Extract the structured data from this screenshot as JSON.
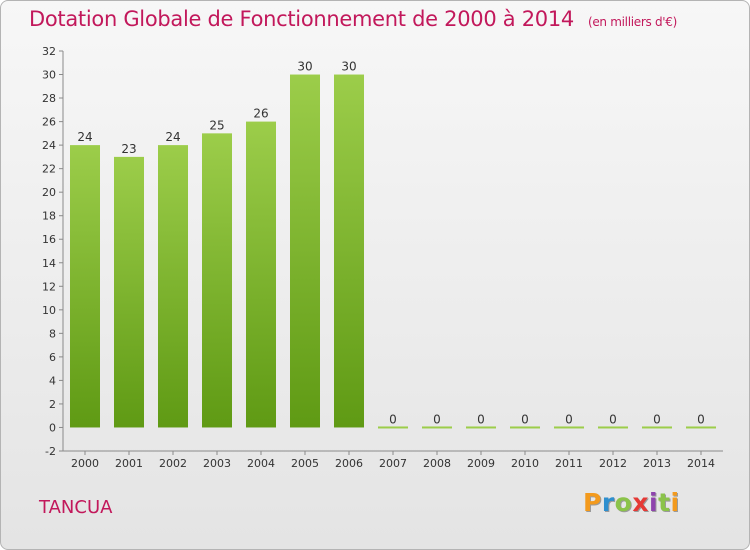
{
  "title": "Dotation Globale de Fonctionnement de 2000 à 2014",
  "unit": "(en milliers d'€)",
  "town": "TANCUA",
  "logo": {
    "letters": [
      "P",
      "r",
      "o",
      "x",
      "i",
      "t",
      "i"
    ],
    "colors": [
      "#f39a1d",
      "#2e8fcf",
      "#8bc34a",
      "#e53935",
      "#8e44ad",
      "#8bc34a",
      "#f39a1d"
    ]
  },
  "colors": {
    "bar_top": "#9ccd4a",
    "bar_bottom": "#5f9a14",
    "title": "#c2185b"
  },
  "chart_data": {
    "type": "bar",
    "title": "Dotation Globale de Fonctionnement de 2000 à 2014",
    "subtitle": "(en milliers d'€)",
    "xlabel": "",
    "ylabel": "",
    "categories": [
      "2000",
      "2001",
      "2002",
      "2003",
      "2004",
      "2005",
      "2006",
      "2007",
      "2008",
      "2009",
      "2010",
      "2011",
      "2012",
      "2013",
      "2014"
    ],
    "values": [
      24,
      23,
      24,
      25,
      26,
      30,
      30,
      0,
      0,
      0,
      0,
      0,
      0,
      0,
      0
    ],
    "ylim": [
      -2,
      32
    ],
    "yticks": [
      -2,
      0,
      2,
      4,
      6,
      8,
      10,
      12,
      14,
      16,
      18,
      20,
      22,
      24,
      26,
      28,
      30,
      32
    ],
    "grid": false,
    "legend": "none"
  }
}
